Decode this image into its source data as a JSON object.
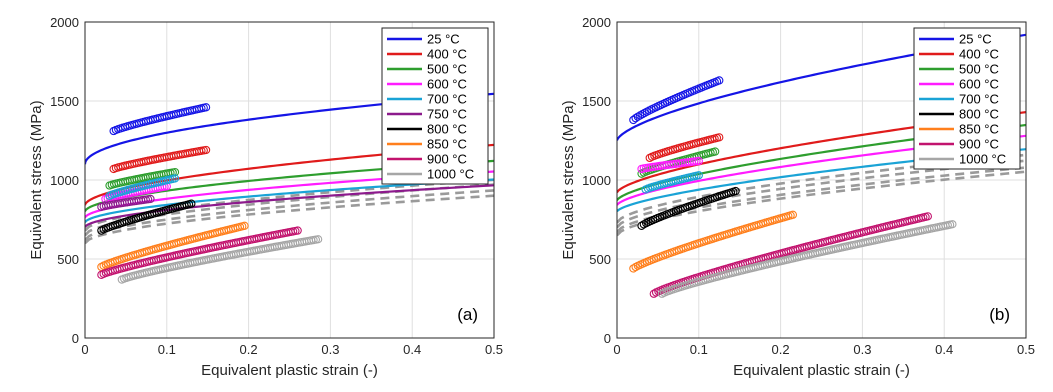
{
  "chart_data": [
    {
      "type": "line",
      "panel_label": "(a)",
      "xlabel": "Equivalent plastic strain (-)",
      "ylabel": "Equivalent stress (MPa)",
      "xlim": [
        0,
        0.5
      ],
      "ylim": [
        0,
        2000
      ],
      "xticks": [
        "0",
        "0.1",
        "0.2",
        "0.3",
        "0.4",
        "0.5"
      ],
      "yticks": [
        "0",
        "500",
        "1000",
        "1500",
        "2000"
      ],
      "grid": true,
      "legend_position": "top-right",
      "series": [
        {
          "name": "25 °C",
          "color": "#1515e6",
          "fit": {
            "a": 1100,
            "b": 630,
            "n": 0.5
          },
          "points": {
            "x0": 0.035,
            "x1": 0.148,
            "y0": 1310,
            "y1": 1460
          }
        },
        {
          "name": "400 °C",
          "color": "#e01b1b",
          "fit": {
            "a": 840,
            "b": 560,
            "n": 0.55
          },
          "points": {
            "x0": 0.035,
            "x1": 0.148,
            "y0": 1070,
            "y1": 1190
          }
        },
        {
          "name": "500 °C",
          "color": "#2e9e2e",
          "fit": {
            "a": 800,
            "b": 470,
            "n": 0.55
          },
          "points": {
            "x0": 0.03,
            "x1": 0.11,
            "y0": 965,
            "y1": 1050
          }
        },
        {
          "name": "600 °C",
          "color": "#ff1cff",
          "fit": {
            "a": 760,
            "b": 430,
            "n": 0.55
          },
          "points": {
            "x0": 0.025,
            "x1": 0.1,
            "y0": 880,
            "y1": 960
          }
        },
        {
          "name": "700 °C",
          "color": "#1aa3d6",
          "fit": {
            "a": 730,
            "b": 400,
            "n": 0.55
          },
          "points": {
            "x0": 0.03,
            "x1": 0.11,
            "y0": 900,
            "y1": 1010
          }
        },
        {
          "name": "750 °C",
          "color": "#8c1a8c",
          "fit": {
            "a": 700,
            "b": 390,
            "n": 0.55
          },
          "points": {
            "x0": 0.02,
            "x1": 0.08,
            "y0": 830,
            "y1": 880
          }
        },
        {
          "name": "800 °C",
          "color": "#000000",
          "fit": null,
          "points": {
            "x0": 0.02,
            "x1": 0.13,
            "y0": 680,
            "y1": 850
          }
        },
        {
          "name": "850 °C",
          "color": "#ff7f1c",
          "fit": null,
          "points": {
            "x0": 0.02,
            "x1": 0.195,
            "y0": 450,
            "y1": 710
          }
        },
        {
          "name": "900 °C",
          "color": "#c2136e",
          "fit": null,
          "points": {
            "x0": 0.02,
            "x1": 0.26,
            "y0": 400,
            "y1": 680
          }
        },
        {
          "name": "1000 °C",
          "color": "#a6a6a6",
          "fit": null,
          "points": {
            "x0": 0.045,
            "x1": 0.285,
            "y0": 370,
            "y1": 625
          }
        }
      ],
      "dashed_fits": {
        "color": "#9a9a9a",
        "curves": [
          {
            "a": 680,
            "b": 470,
            "n": 0.55
          },
          {
            "a": 650,
            "b": 470,
            "n": 0.55
          },
          {
            "a": 620,
            "b": 460,
            "n": 0.55
          },
          {
            "a": 600,
            "b": 440,
            "n": 0.55
          }
        ]
      }
    },
    {
      "type": "line",
      "panel_label": "(b)",
      "xlabel": "Equivalent plastic strain (-)",
      "ylabel": "Equivalent stress (MPa)",
      "xlim": [
        0,
        0.5
      ],
      "ylim": [
        0,
        2000
      ],
      "xticks": [
        "0",
        "0.1",
        "0.2",
        "0.3",
        "0.4",
        "0.5"
      ],
      "yticks": [
        "0",
        "500",
        "1000",
        "1500",
        "2000"
      ],
      "grid": true,
      "legend_position": "top-right",
      "series": [
        {
          "name": "25 °C",
          "color": "#1515e6",
          "fit": {
            "a": 1250,
            "b": 1050,
            "n": 0.65
          },
          "points": {
            "x0": 0.02,
            "x1": 0.125,
            "y0": 1380,
            "y1": 1630
          }
        },
        {
          "name": "400 °C",
          "color": "#e01b1b",
          "fit": {
            "a": 920,
            "b": 800,
            "n": 0.65
          },
          "points": {
            "x0": 0.04,
            "x1": 0.125,
            "y0": 1140,
            "y1": 1270
          }
        },
        {
          "name": "500 °C",
          "color": "#2e9e2e",
          "fit": {
            "a": 870,
            "b": 750,
            "n": 0.65
          },
          "points": {
            "x0": 0.03,
            "x1": 0.12,
            "y0": 1040,
            "y1": 1180
          }
        },
        {
          "name": "600 °C",
          "color": "#ff1cff",
          "fit": {
            "a": 840,
            "b": 690,
            "n": 0.65
          },
          "points": {
            "x0": 0.03,
            "x1": 0.1,
            "y0": 1070,
            "y1": 1120
          }
        },
        {
          "name": "700 °C",
          "color": "#1aa3d6",
          "fit": {
            "a": 800,
            "b": 620,
            "n": 0.65
          },
          "points": {
            "x0": 0.035,
            "x1": 0.1,
            "y0": 940,
            "y1": 1030
          }
        },
        {
          "name": "800 °C",
          "color": "#000000",
          "fit": null,
          "points": {
            "x0": 0.03,
            "x1": 0.145,
            "y0": 710,
            "y1": 930
          }
        },
        {
          "name": "850 °C",
          "color": "#ff7f1c",
          "fit": null,
          "points": {
            "x0": 0.02,
            "x1": 0.215,
            "y0": 440,
            "y1": 780
          }
        },
        {
          "name": "900 °C",
          "color": "#c2136e",
          "fit": null,
          "points": {
            "x0": 0.045,
            "x1": 0.38,
            "y0": 280,
            "y1": 770
          }
        },
        {
          "name": "1000 °C",
          "color": "#a6a6a6",
          "fit": null,
          "points": {
            "x0": 0.055,
            "x1": 0.41,
            "y0": 280,
            "y1": 720
          }
        }
      ],
      "dashed_fits": {
        "color": "#9a9a9a",
        "curves": [
          {
            "a": 730,
            "b": 650,
            "n": 0.6
          },
          {
            "a": 700,
            "b": 640,
            "n": 0.6
          },
          {
            "a": 670,
            "b": 620,
            "n": 0.6
          },
          {
            "a": 650,
            "b": 610,
            "n": 0.6
          }
        ]
      }
    }
  ]
}
